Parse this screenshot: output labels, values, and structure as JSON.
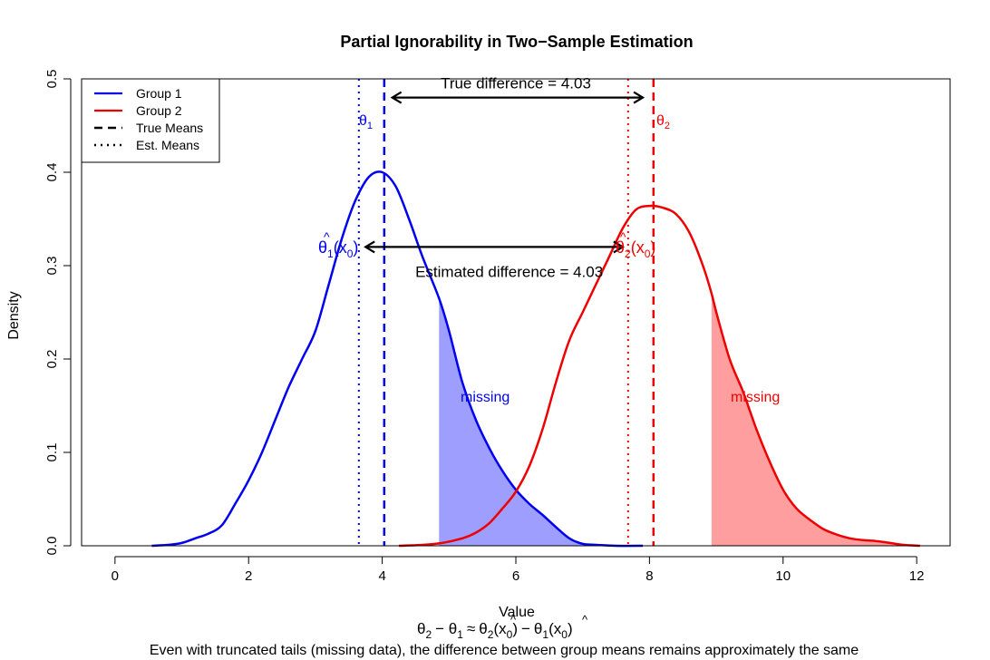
{
  "chart_data": {
    "type": "area",
    "title": "Partial Ignorability in Two−Sample Estimation",
    "xlabel": "Value",
    "ylabel": "Density",
    "xlim": [
      -0.5,
      12.5
    ],
    "ylim": [
      0,
      0.5
    ],
    "x_ticks": [
      "0",
      "2",
      "4",
      "6",
      "8",
      "10",
      "12"
    ],
    "y_ticks": [
      "0.0",
      "0.1",
      "0.2",
      "0.3",
      "0.4",
      "0.5"
    ],
    "grid": false,
    "legend_position": "top-left",
    "legend": [
      {
        "label": "Group 1",
        "style": "solid",
        "color": "#0000ee"
      },
      {
        "label": "Group 2",
        "style": "solid",
        "color": "#ee0000"
      },
      {
        "label": "True Means",
        "style": "dashed",
        "color": "#000000"
      },
      {
        "label": "Est. Means",
        "style": "dotted",
        "color": "#000000"
      }
    ],
    "series": [
      {
        "name": "Group 1",
        "color": "#0000ee",
        "x": [
          0.55,
          0.8,
          1.0,
          1.2,
          1.4,
          1.6,
          1.8,
          2.0,
          2.2,
          2.4,
          2.6,
          2.8,
          3.0,
          3.2,
          3.4,
          3.6,
          3.8,
          4.0,
          4.2,
          4.4,
          4.6,
          4.85,
          5.0,
          5.2,
          5.4,
          5.6,
          5.8,
          6.0,
          6.2,
          6.4,
          6.6,
          6.8,
          7.0,
          7.2,
          7.5,
          7.9
        ],
        "y": [
          0.0,
          0.001,
          0.003,
          0.008,
          0.013,
          0.022,
          0.045,
          0.07,
          0.1,
          0.135,
          0.17,
          0.2,
          0.23,
          0.28,
          0.33,
          0.37,
          0.395,
          0.4,
          0.385,
          0.35,
          0.31,
          0.265,
          0.23,
          0.175,
          0.135,
          0.105,
          0.08,
          0.06,
          0.045,
          0.033,
          0.02,
          0.008,
          0.002,
          0.001,
          0.0,
          0.0
        ]
      },
      {
        "name": "Group 2",
        "color": "#ee0000",
        "x": [
          4.25,
          4.6,
          4.9,
          5.2,
          5.4,
          5.6,
          5.8,
          6.0,
          6.2,
          6.4,
          6.6,
          6.8,
          7.0,
          7.2,
          7.4,
          7.6,
          7.8,
          8.0,
          8.2,
          8.4,
          8.6,
          8.8,
          8.93,
          9.0,
          9.2,
          9.4,
          9.6,
          9.8,
          10.0,
          10.2,
          10.4,
          10.6,
          10.8,
          11.0,
          11.2,
          11.4,
          11.6,
          11.8,
          12.05
        ],
        "y": [
          0.0,
          0.001,
          0.003,
          0.008,
          0.014,
          0.024,
          0.04,
          0.058,
          0.085,
          0.125,
          0.175,
          0.22,
          0.25,
          0.28,
          0.31,
          0.34,
          0.36,
          0.364,
          0.362,
          0.355,
          0.335,
          0.3,
          0.27,
          0.25,
          0.2,
          0.165,
          0.125,
          0.09,
          0.06,
          0.04,
          0.028,
          0.018,
          0.012,
          0.008,
          0.006,
          0.005,
          0.003,
          0.001,
          0.0
        ]
      }
    ],
    "shaded_tails": [
      {
        "series": "Group 1",
        "from": 4.85,
        "to": 7.0,
        "color": "#9999ff",
        "label": "missing"
      },
      {
        "series": "Group 2",
        "from": 8.93,
        "to": 12.05,
        "color": "#ff9999",
        "label": "missing"
      }
    ],
    "vertical_lines": [
      {
        "name": "theta1-true",
        "x": 4.03,
        "style": "dashed",
        "color": "#0000ee"
      },
      {
        "name": "theta1-est",
        "x": 3.65,
        "style": "dotted",
        "color": "#0000ee"
      },
      {
        "name": "theta2-true",
        "x": 8.06,
        "style": "dashed",
        "color": "#ee0000"
      },
      {
        "name": "theta2-est",
        "x": 7.68,
        "style": "dotted",
        "color": "#ee0000"
      }
    ],
    "arrows": [
      {
        "name": "true-diff-arrow",
        "x1": 4.15,
        "x2": 7.9,
        "y": 0.48,
        "label": "True difference = 4.03",
        "label_x": 6.0,
        "label_y": 0.49
      },
      {
        "name": "est-diff-arrow",
        "x1": 3.75,
        "x2": 7.6,
        "y": 0.32,
        "label": "Estimated difference = 4.03",
        "label_x": 5.9,
        "label_y": 0.288
      }
    ],
    "math_labels": {
      "theta1": "θ",
      "theta1_sub": "1",
      "theta2": "θ",
      "theta2_sub": "2",
      "theta1_hat": "θ",
      "theta1_hat_sub": "1",
      "theta2_hat": "θ",
      "theta2_hat_sub": "2",
      "hat": "^",
      "x0_open": "(x",
      "x0_sub": "0",
      "close": ")"
    },
    "formula": {
      "lhs": "θ",
      "lhs_sub1": "2",
      "minus": "− θ",
      "lhs_sub2": "1",
      "approx": "≈",
      "rhs1": "θ",
      "rhs1_sub": "2",
      "rhs1_arg": "(x",
      "rhs1_arg_sub": "0",
      "rhs_close1": ")",
      "rhs_minus": "−",
      "rhs2": "θ",
      "rhs2_sub": "1",
      "rhs2_arg": "(x",
      "rhs2_arg_sub": "0",
      "rhs_close2": ")"
    },
    "caption": "Even with truncated tails (missing data), the difference between group means remains approximately the same"
  }
}
